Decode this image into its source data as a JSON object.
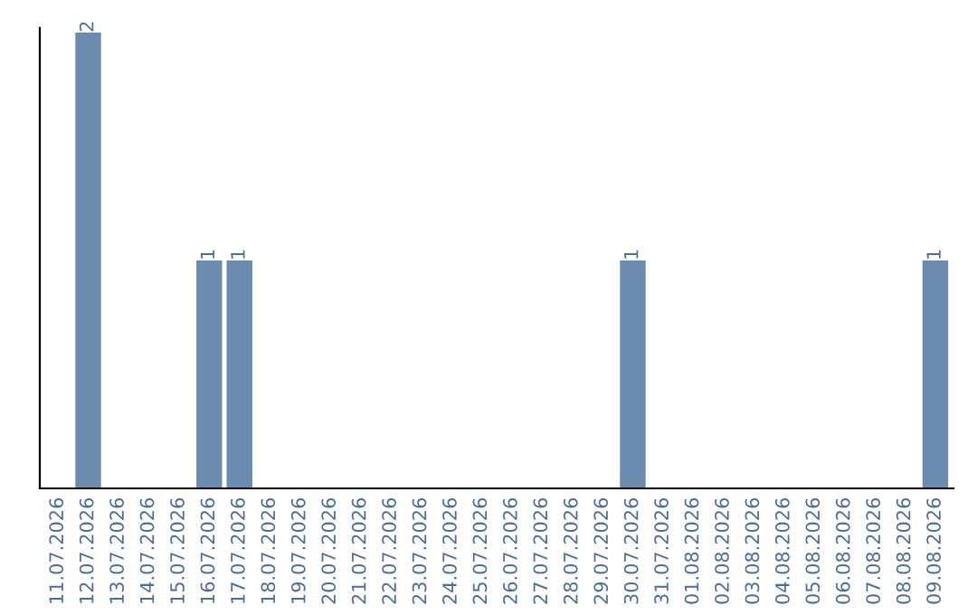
{
  "chart_data": {
    "type": "bar",
    "categories": [
      "11.07.2026",
      "12.07.2026",
      "13.07.2026",
      "14.07.2026",
      "15.07.2026",
      "16.07.2026",
      "17.07.2026",
      "18.07.2026",
      "19.07.2026",
      "20.07.2026",
      "21.07.2026",
      "22.07.2026",
      "23.07.2026",
      "24.07.2026",
      "25.07.2026",
      "26.07.2026",
      "27.07.2026",
      "28.07.2026",
      "29.07.2026",
      "30.07.2026",
      "31.07.2026",
      "01.08.2026",
      "02.08.2026",
      "03.08.2026",
      "04.08.2026",
      "05.08.2026",
      "06.08.2026",
      "07.08.2026",
      "08.08.2026",
      "09.08.2026"
    ],
    "values": [
      0,
      2,
      0,
      0,
      0,
      1,
      1,
      0,
      0,
      0,
      0,
      0,
      0,
      0,
      0,
      0,
      0,
      0,
      0,
      1,
      0,
      0,
      0,
      0,
      0,
      0,
      0,
      0,
      0,
      1
    ],
    "value_labels": [
      null,
      "2",
      null,
      null,
      null,
      "1",
      "1",
      null,
      null,
      null,
      null,
      null,
      null,
      null,
      null,
      null,
      null,
      null,
      null,
      "1",
      null,
      null,
      null,
      null,
      null,
      null,
      null,
      null,
      null,
      "1"
    ],
    "color": "#6b8cae",
    "ylim": [
      0,
      2
    ],
    "tick_labels": "x",
    "grid": false,
    "legend": false
  }
}
